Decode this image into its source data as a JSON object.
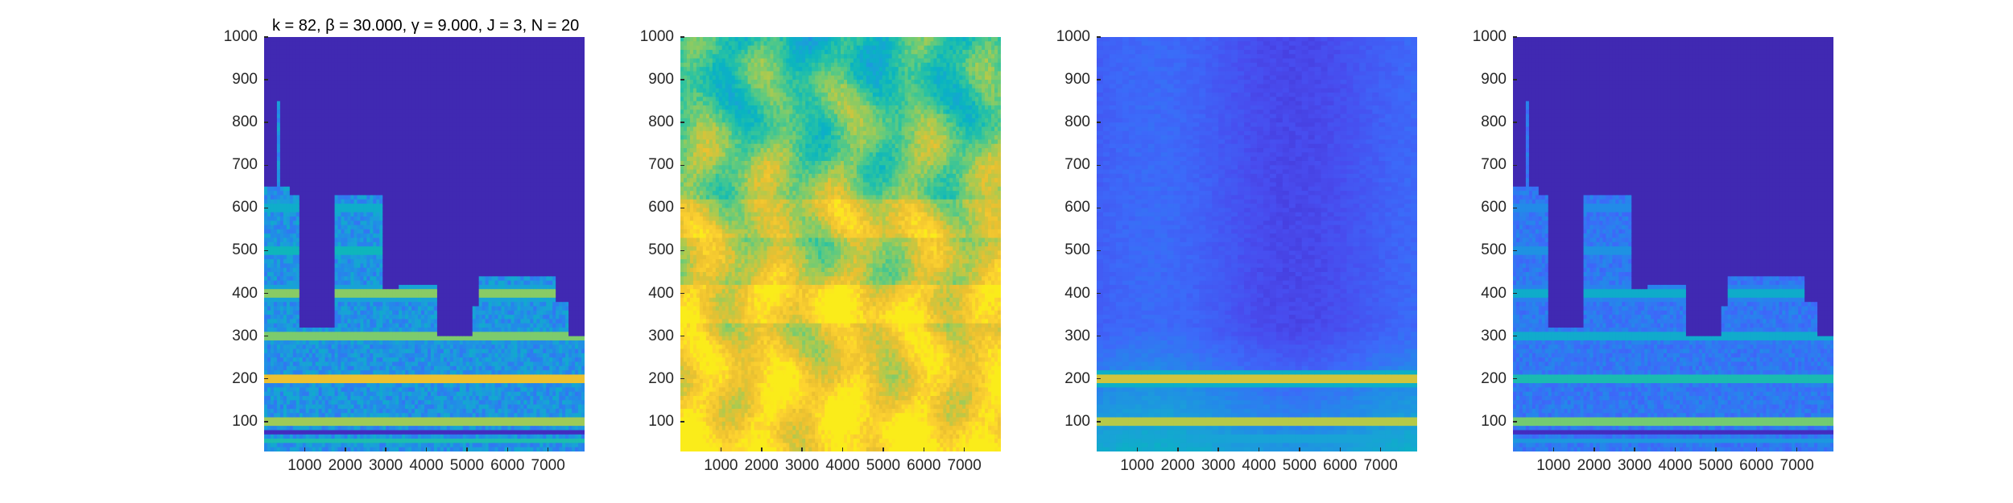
{
  "chart_data": [
    {
      "type": "heatmap",
      "title": "k = 82, β = 30.000, γ = 9.000, J = 3, N = 20",
      "xlabel": "",
      "ylabel": "",
      "xlim": [
        0,
        7900
      ],
      "ylim": [
        30,
        1000
      ],
      "xticks": [
        "1000",
        "2000",
        "3000",
        "4000",
        "5000",
        "6000",
        "7000"
      ],
      "yticks": [
        "100",
        "200",
        "300",
        "400",
        "500",
        "600",
        "700",
        "800",
        "900",
        "1000"
      ],
      "colormap": "parula",
      "description_level": "sparse harmonic spectrogram, dark background with bright bands"
    },
    {
      "type": "heatmap",
      "title": "",
      "xlabel": "",
      "ylabel": "",
      "xlim": [
        0,
        7900
      ],
      "ylim": [
        30,
        1000
      ],
      "xticks": [
        "1000",
        "2000",
        "3000",
        "4000",
        "5000",
        "6000",
        "7000"
      ],
      "yticks": [
        "100",
        "200",
        "300",
        "400",
        "500",
        "600",
        "700",
        "800",
        "900",
        "1000"
      ],
      "colormap": "parula"
    },
    {
      "type": "heatmap",
      "title": "",
      "xlabel": "",
      "ylabel": "",
      "xlim": [
        0,
        7900
      ],
      "ylim": [
        30,
        1000
      ],
      "xticks": [
        "1000",
        "2000",
        "3000",
        "4000",
        "5000",
        "6000",
        "7000"
      ],
      "yticks": [
        "100",
        "200",
        "300",
        "400",
        "500",
        "600",
        "700",
        "800",
        "900",
        "1000"
      ],
      "colormap": "parula"
    },
    {
      "type": "heatmap",
      "title": "",
      "xlabel": "",
      "ylabel": "",
      "xlim": [
        0,
        7900
      ],
      "ylim": [
        30,
        1000
      ],
      "xticks": [
        "1000",
        "2000",
        "3000",
        "4000",
        "5000",
        "6000",
        "7000"
      ],
      "yticks": [
        "100",
        "200",
        "300",
        "400",
        "500",
        "600",
        "700",
        "800",
        "900",
        "1000"
      ],
      "colormap": "parula"
    }
  ]
}
